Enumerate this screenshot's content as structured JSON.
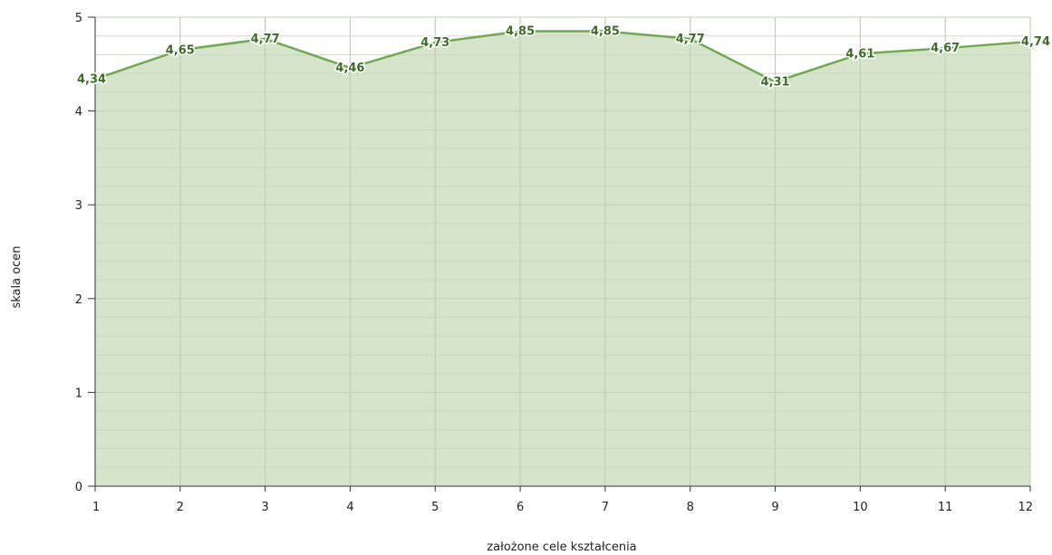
{
  "chart_data": {
    "type": "area",
    "title": "",
    "xlabel": "założone cele kształcenia",
    "ylabel": "skala ocen",
    "x": [
      1,
      2,
      3,
      4,
      5,
      6,
      7,
      8,
      9,
      10,
      11,
      12
    ],
    "xticks": [
      "1",
      "2",
      "3",
      "4",
      "5",
      "6",
      "7",
      "8",
      "9",
      "10",
      "11",
      "12"
    ],
    "yticks": [
      "0",
      "1",
      "2",
      "3",
      "4",
      "5"
    ],
    "xlim": [
      1,
      12
    ],
    "ylim": [
      0,
      5
    ],
    "grid": true,
    "legend": "none",
    "colors": {
      "line": "#72a853",
      "fill": "#d2e1c6",
      "grid": "#c6cfc3",
      "label": "#3d6b2a"
    },
    "series": [
      {
        "values": [
          4.34,
          4.65,
          4.77,
          4.46,
          4.73,
          4.85,
          4.85,
          4.77,
          4.31,
          4.61,
          4.67,
          4.74
        ],
        "labels": [
          "4,34",
          "4,65",
          "4,77",
          "4,46",
          "4,73",
          "4,85",
          "4,85",
          "4,77",
          "4,31",
          "4,61",
          "4,67",
          "4,74"
        ]
      }
    ]
  }
}
